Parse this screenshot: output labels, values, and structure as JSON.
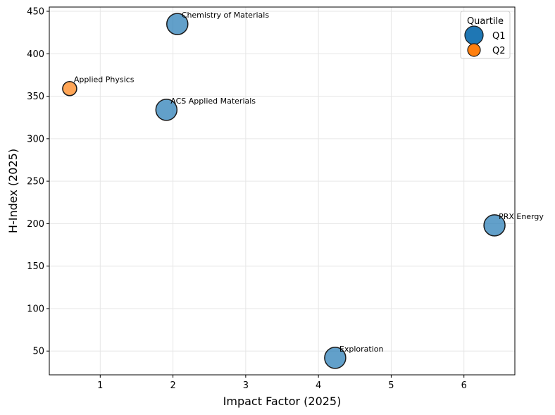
{
  "chart_data": {
    "type": "scatter",
    "title": "",
    "xlabel": "Impact Factor (2025)",
    "ylabel": "H-Index (2025)",
    "xlim": [
      0.3,
      6.7
    ],
    "ylim": [
      22,
      455
    ],
    "xticks": [
      1,
      2,
      3,
      4,
      5,
      6
    ],
    "yticks": [
      50,
      100,
      150,
      200,
      250,
      300,
      350,
      400,
      450
    ],
    "grid": true,
    "legend": {
      "title": "Quartile",
      "position": "top-right",
      "entries": [
        {
          "label": "Q1",
          "color": "#1f77b4"
        },
        {
          "label": "Q2",
          "color": "#ff7f0e"
        }
      ]
    },
    "points": [
      {
        "label": "Chemistry of Materials",
        "x": 2.06,
        "y": 435,
        "quartile": "Q1"
      },
      {
        "label": "Applied Physics",
        "x": 0.58,
        "y": 359,
        "quartile": "Q2"
      },
      {
        "label": "ACS Applied Materials",
        "x": 1.91,
        "y": 334,
        "quartile": "Q1"
      },
      {
        "label": "PRX Energy",
        "x": 6.42,
        "y": 198,
        "quartile": "Q1"
      },
      {
        "label": "Exploration",
        "x": 4.23,
        "y": 42,
        "quartile": "Q1"
      }
    ]
  }
}
